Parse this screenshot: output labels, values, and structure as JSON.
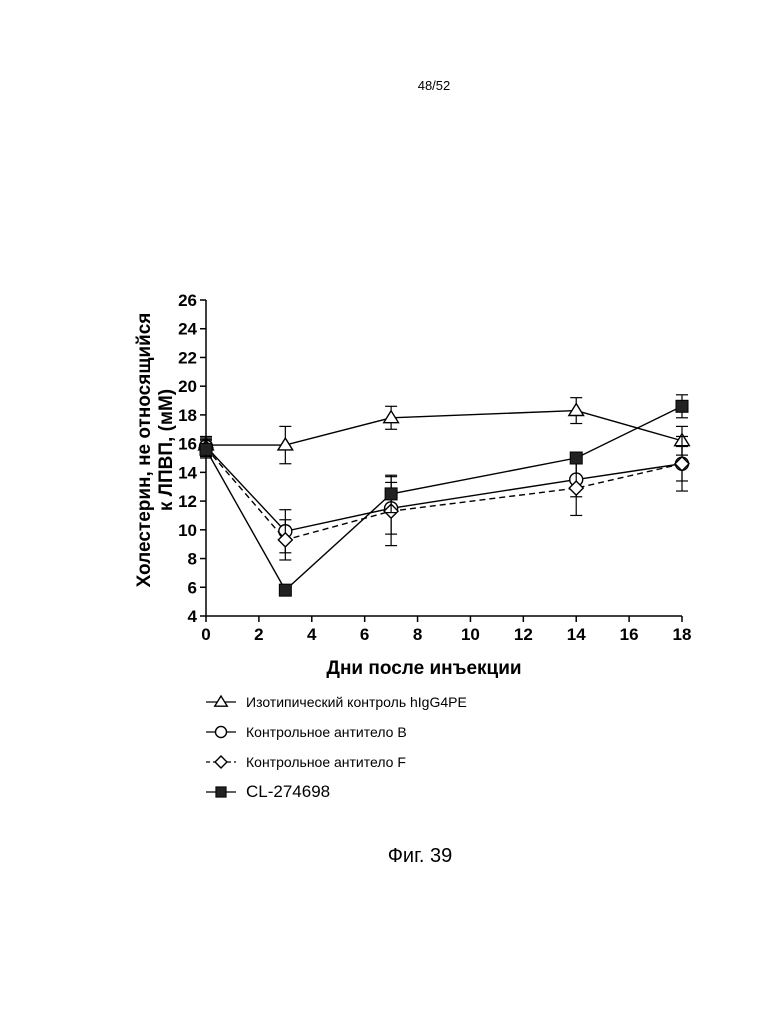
{
  "page": {
    "page_number": "48/52",
    "caption": "Фиг. 39"
  },
  "chart_data": {
    "type": "line",
    "title": "",
    "xlabel": "Дни после инъекции",
    "ylabel_lines": [
      "Холестерин, не относящийся",
      "к ЛПВП, (мМ)"
    ],
    "xlim": [
      0,
      18
    ],
    "ylim": [
      4,
      26
    ],
    "xticks": [
      0,
      2,
      4,
      6,
      8,
      10,
      12,
      14,
      16,
      18
    ],
    "yticks": [
      4,
      6,
      8,
      10,
      12,
      14,
      16,
      18,
      20,
      22,
      24,
      26
    ],
    "grid": false,
    "legend_position": "bottom",
    "series": [
      {
        "name": "Изотипический контроль hIgG4PE",
        "marker": "triangle",
        "line": "solid",
        "x": [
          0,
          3,
          7,
          14,
          18
        ],
        "y": [
          15.9,
          15.9,
          17.8,
          18.3,
          16.2
        ],
        "err": [
          0.6,
          1.3,
          0.8,
          0.9,
          1.0
        ]
      },
      {
        "name": "Контрольное антитело В",
        "marker": "circle",
        "line": "solid",
        "x": [
          0,
          3,
          7,
          14,
          18
        ],
        "y": [
          15.8,
          9.9,
          11.5,
          13.5,
          14.6
        ],
        "err": [
          0.6,
          1.5,
          1.8,
          1.2,
          1.2
        ]
      },
      {
        "name": "Контрольное антитело F",
        "marker": "diamond",
        "line": "dashed",
        "x": [
          0,
          3,
          7,
          14,
          18
        ],
        "y": [
          15.7,
          9.3,
          11.3,
          12.9,
          14.6
        ],
        "err": [
          0.6,
          1.4,
          2.4,
          1.9,
          1.9
        ]
      },
      {
        "name": "CL-274698",
        "marker": "square",
        "line": "solid",
        "x": [
          0,
          3,
          7,
          14,
          18
        ],
        "y": [
          15.6,
          5.8,
          12.5,
          15.0,
          18.6
        ],
        "err": [
          0.6,
          0.3,
          1.3,
          0.4,
          0.8
        ]
      }
    ]
  }
}
